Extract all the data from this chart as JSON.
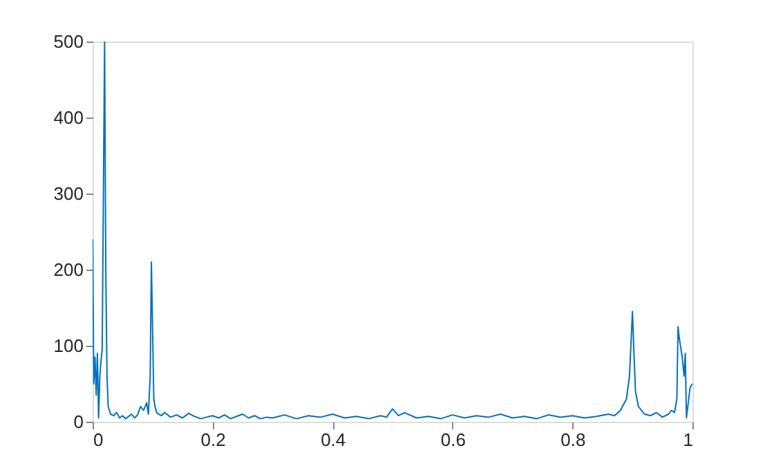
{
  "chart_data": {
    "type": "line",
    "x": [
      0,
      0.002,
      0.004,
      0.006,
      0.008,
      0.01,
      0.012,
      0.014,
      0.016,
      0.018,
      0.02,
      0.022,
      0.024,
      0.026,
      0.028,
      0.03,
      0.035,
      0.04,
      0.045,
      0.05,
      0.055,
      0.06,
      0.065,
      0.07,
      0.075,
      0.08,
      0.085,
      0.09,
      0.093,
      0.096,
      0.098,
      0.1,
      0.102,
      0.104,
      0.107,
      0.11,
      0.115,
      0.12,
      0.13,
      0.14,
      0.15,
      0.16,
      0.17,
      0.18,
      0.19,
      0.2,
      0.21,
      0.22,
      0.23,
      0.24,
      0.25,
      0.26,
      0.27,
      0.28,
      0.29,
      0.3,
      0.32,
      0.34,
      0.36,
      0.38,
      0.4,
      0.42,
      0.44,
      0.46,
      0.48,
      0.49,
      0.5,
      0.51,
      0.52,
      0.54,
      0.56,
      0.58,
      0.6,
      0.62,
      0.64,
      0.66,
      0.68,
      0.7,
      0.72,
      0.74,
      0.76,
      0.78,
      0.8,
      0.82,
      0.84,
      0.86,
      0.87,
      0.88,
      0.89,
      0.895,
      0.9,
      0.902,
      0.905,
      0.91,
      0.915,
      0.92,
      0.93,
      0.94,
      0.95,
      0.96,
      0.965,
      0.97,
      0.974,
      0.976,
      0.978,
      0.98,
      0.983,
      0.986,
      0.988,
      0.99,
      0.993,
      0.996,
      1.0
    ],
    "values": [
      240,
      50,
      85,
      35,
      90,
      5,
      60,
      80,
      95,
      300,
      500,
      200,
      60,
      20,
      15,
      10,
      8,
      12,
      5,
      8,
      4,
      7,
      10,
      5,
      9,
      20,
      15,
      25,
      10,
      60,
      210,
      120,
      30,
      20,
      12,
      10,
      8,
      12,
      6,
      9,
      5,
      11,
      7,
      4,
      6,
      8,
      5,
      9,
      4,
      7,
      10,
      5,
      8,
      4,
      6,
      5,
      9,
      4,
      8,
      6,
      10,
      5,
      7,
      4,
      8,
      6,
      17,
      8,
      12,
      5,
      7,
      4,
      9,
      5,
      8,
      6,
      10,
      5,
      7,
      4,
      9,
      6,
      8,
      5,
      7,
      10,
      8,
      15,
      30,
      60,
      145,
      100,
      40,
      20,
      15,
      10,
      8,
      12,
      6,
      10,
      15,
      12,
      30,
      125,
      110,
      100,
      85,
      60,
      90,
      5,
      25,
      45,
      50
    ],
    "color": "#0072bd",
    "xlim": [
      0,
      1
    ],
    "xticks": [
      0,
      0.2,
      0.4,
      0.6,
      0.8,
      1
    ],
    "ylim": [
      0,
      500
    ],
    "yticks": [
      0,
      100,
      200,
      300,
      400,
      500
    ],
    "grid": false,
    "marker": "none",
    "line_style": "solid"
  }
}
